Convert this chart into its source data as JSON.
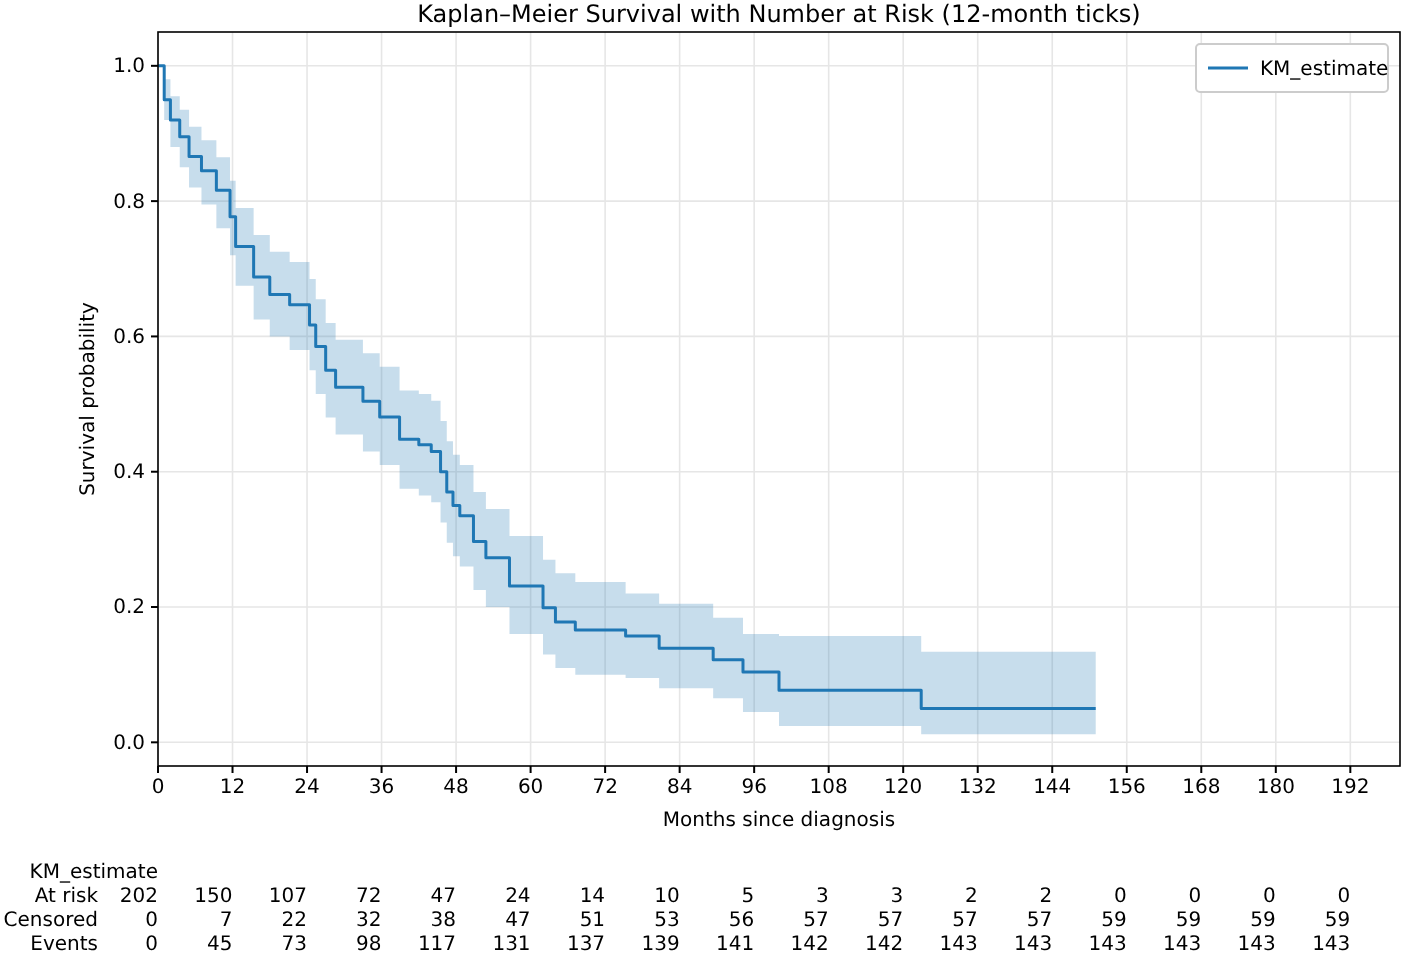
{
  "chart_data": {
    "type": "step",
    "title": "Kaplan–Meier Survival with Number at Risk (12-month ticks)",
    "xlabel": "Months since diagnosis",
    "ylabel": "Survival probability",
    "xlim": [
      0,
      200
    ],
    "xticks": [
      0,
      12,
      24,
      36,
      48,
      60,
      72,
      84,
      96,
      108,
      120,
      132,
      144,
      156,
      168,
      180,
      192
    ],
    "ylim": [
      -0.035,
      1.05
    ],
    "yticks": [
      {
        "value": 0,
        "label": "0.0"
      },
      {
        "value": 0.2,
        "label": "0.2"
      },
      {
        "value": 0.4,
        "label": "0.4"
      },
      {
        "value": 0.6,
        "label": "0.6"
      },
      {
        "value": 0.8,
        "label": "0.8"
      },
      {
        "value": 1,
        "label": "1.0"
      }
    ],
    "grid": true,
    "legend": "top right",
    "series": [
      {
        "name": "KM_estimate",
        "color": "#1f77b4",
        "x": [
          0,
          1,
          2,
          3.5,
          5,
          7,
          9.4,
          11.6,
          12.5,
          15.4,
          18,
          21.2,
          24.4,
          25.4,
          27,
          28.6,
          33,
          35.7,
          38.9,
          42,
          44,
          45.5,
          46.5,
          47.5,
          48.6,
          50.8,
          52.8,
          56.6,
          62,
          64,
          67.2,
          75.3,
          80.7,
          89.4,
          94.2,
          100,
          122.9,
          151
        ],
        "values": [
          1,
          0.95,
          0.92,
          0.895,
          0.866,
          0.845,
          0.816,
          0.777,
          0.733,
          0.688,
          0.662,
          0.647,
          0.617,
          0.585,
          0.55,
          0.525,
          0.504,
          0.481,
          0.448,
          0.44,
          0.43,
          0.4,
          0.37,
          0.35,
          0.335,
          0.297,
          0.273,
          0.231,
          0.199,
          0.178,
          0.166,
          0.157,
          0.139,
          0.122,
          0.104,
          0.077,
          0.05,
          0.05
        ],
        "lower": [
          1,
          0.92,
          0.88,
          0.85,
          0.82,
          0.795,
          0.76,
          0.72,
          0.675,
          0.625,
          0.6,
          0.58,
          0.55,
          0.515,
          0.48,
          0.455,
          0.43,
          0.41,
          0.375,
          0.365,
          0.355,
          0.325,
          0.295,
          0.275,
          0.26,
          0.225,
          0.2,
          0.16,
          0.13,
          0.11,
          0.1,
          0.095,
          0.08,
          0.065,
          0.045,
          0.024,
          0.012,
          0.012
        ],
        "upper": [
          1,
          0.98,
          0.955,
          0.935,
          0.91,
          0.89,
          0.865,
          0.83,
          0.79,
          0.75,
          0.725,
          0.71,
          0.685,
          0.655,
          0.62,
          0.595,
          0.575,
          0.555,
          0.52,
          0.515,
          0.505,
          0.475,
          0.445,
          0.425,
          0.41,
          0.37,
          0.345,
          0.305,
          0.27,
          0.25,
          0.237,
          0.22,
          0.205,
          0.184,
          0.16,
          0.157,
          0.134,
          0.134
        ]
      }
    ],
    "annotations": [
      "KM_estimate",
      "At risk",
      "202 150 107 72 47 24 14 10 5 3 3 2 2 0 0 0 0",
      "Censored",
      "0 7 22 32 38 47 51 53 56 57 57 57 57 59 59 59 59",
      "Events",
      "0 45 73 98 117 131 137 139 141 142 142 143 143 143 143 143 143"
    ]
  }
}
